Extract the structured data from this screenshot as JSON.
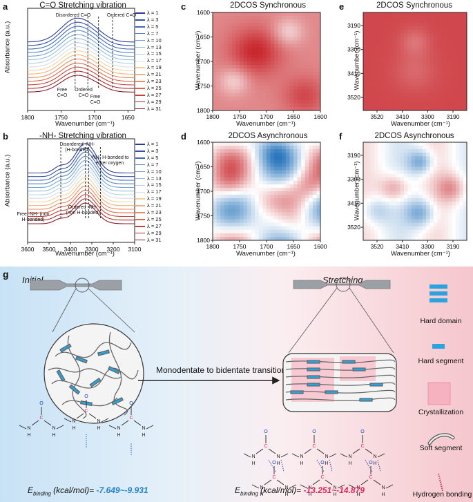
{
  "panels": {
    "a": {
      "label": "a",
      "title": "C=O Stretching vibration",
      "ylabel": "Absorbance (a.u.)",
      "xlabel": "Wavenumber (cm⁻¹)",
      "annotations": [
        "Disordered C=O",
        "Ordered C=O",
        "Free C=O",
        "Ordered C=O",
        "Free C=O"
      ]
    },
    "b": {
      "label": "b",
      "title": "-NH- Stretching vibration",
      "ylabel": "Absorbance (a.u.)",
      "xlabel": "Wavenumber (cm⁻¹)",
      "annotations": [
        "Disordered -NH- (H-bonded)",
        "-NH- H-bonded to ether oxygen",
        "Free -NH- (non H-bonded)",
        "Ordered -NH- (non H-bonded)"
      ]
    },
    "c": {
      "label": "c",
      "title": "2DCOS Synchronous",
      "ylabel": "Wavenumber (cm⁻¹)",
      "xlabel": "Wavenumber (cm⁻¹)"
    },
    "d": {
      "label": "d",
      "title": "2DCOS Asynchronous",
      "ylabel": "Wavenumber (cm⁻¹)",
      "xlabel": "Wavenumber (cm⁻¹)"
    },
    "e": {
      "label": "e",
      "title": "2DCOS Synchronous",
      "ylabel": "Wavenumber (cm⁻¹)",
      "xlabel": "Wavenumber (cm⁻¹)"
    },
    "f": {
      "label": "f",
      "title": "2DCOS Asynchronous",
      "ylabel": "Wavenumber (cm⁻¹)",
      "xlabel": "Wavenumber (cm⁻¹)"
    }
  },
  "legend": [
    "λ = 1",
    "λ = 3",
    "λ = 5",
    "λ = 7",
    "λ = 10",
    "λ = 13",
    "λ = 15",
    "λ = 17",
    "λ = 19",
    "λ = 21",
    "λ = 23",
    "λ = 25",
    "λ = 27",
    "λ = 29",
    "λ = 31"
  ],
  "legend_colors": [
    "#2b3b9a",
    "#3350a8",
    "#3f67b8",
    "#5784c6",
    "#76a2d4",
    "#96bddf",
    "#b6d3e8",
    "#d8dde6",
    "#f2d39c",
    "#f3b27a",
    "#ee8b5e",
    "#e06446",
    "#c8423a",
    "#a92a2e",
    "#8c1a22"
  ],
  "schematic": {
    "label": "g",
    "initial": "Initial",
    "stretching": "Stretching",
    "transition": "Monodentate to bidentate transition",
    "e_label": "E",
    "e_sub": "binding",
    "e_unit": " (kcal/mol)=",
    "e_initial": "-7.649~-9.931",
    "e_stretch": "-13.251~-14.879",
    "legend_items": [
      "Hard domain",
      "Hard segment",
      "Crystallization",
      "Soft segment",
      "Hydrogen bonding"
    ],
    "accent_blue": "#1f7fc9",
    "accent_pink": "#e0245e"
  },
  "chart_data": [
    {
      "panel": "a",
      "type": "line",
      "xlim": [
        1800,
        1640
      ],
      "xticks": [
        1800,
        1750,
        1700,
        1650
      ],
      "series_count": 15,
      "peak_positions": [
        1729,
        1710,
        1694,
        1673
      ]
    },
    {
      "panel": "b",
      "type": "line",
      "xlim": [
        3600,
        3100
      ],
      "xticks": [
        3600,
        3500,
        3400,
        3300,
        3200,
        3100
      ],
      "series_count": 15,
      "peak_positions": [
        3445,
        3330,
        3315,
        3260
      ]
    },
    {
      "panel": "c",
      "type": "heatmap",
      "xlim": [
        1800,
        1600
      ],
      "ylim": [
        1600,
        1800
      ],
      "xticks": [
        1800,
        1750,
        1700,
        1650,
        1600
      ],
      "yticks": [
        1600,
        1650,
        1700,
        1750,
        1800
      ]
    },
    {
      "panel": "d",
      "type": "heatmap",
      "xlim": [
        1800,
        1600
      ],
      "ylim": [
        1600,
        1800
      ],
      "xticks": [
        1800,
        1750,
        1700,
        1650,
        1600
      ],
      "yticks": [
        1600,
        1650,
        1700,
        1750,
        1800
      ]
    },
    {
      "panel": "e",
      "type": "heatmap",
      "xlim": [
        3580,
        3130
      ],
      "ylim": [
        3130,
        3580
      ],
      "xticks": [
        3520,
        3410,
        3300,
        3190
      ],
      "yticks": [
        3190,
        3300,
        3410,
        3520
      ]
    },
    {
      "panel": "f",
      "type": "heatmap",
      "xlim": [
        3580,
        3130
      ],
      "ylim": [
        3130,
        3580
      ],
      "xticks": [
        3520,
        3410,
        3300,
        3190
      ],
      "yticks": [
        3190,
        3300,
        3410,
        3520
      ]
    }
  ]
}
